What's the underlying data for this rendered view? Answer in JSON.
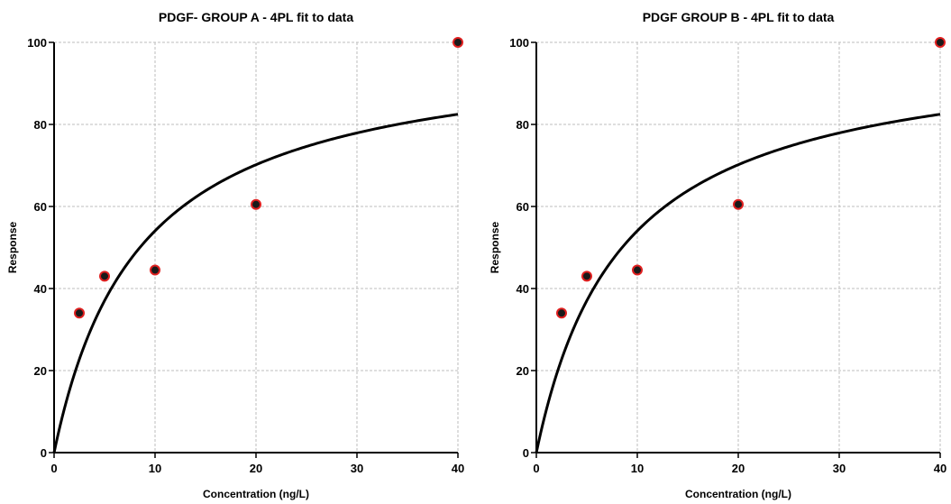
{
  "chart_data": [
    {
      "type": "scatter",
      "title": "PDGF- GROUP A - 4PL fit to data",
      "xlabel": "Concentration (ng/L)",
      "ylabel": "Response",
      "xlim": [
        0,
        40
      ],
      "ylim": [
        0,
        100
      ],
      "xticks": [
        0,
        10,
        20,
        30,
        40
      ],
      "yticks": [
        0,
        20,
        40,
        60,
        80,
        100
      ],
      "grid": true,
      "series": [
        {
          "x": [
            2.5,
            5,
            10,
            20,
            40
          ],
          "y": [
            34,
            43,
            44.5,
            60.5,
            100
          ]
        }
      ],
      "fit": {
        "model": "4PL",
        "params": {
          "a": 0,
          "d": 100,
          "c": 8.5,
          "b": 1
        }
      }
    },
    {
      "type": "scatter",
      "title": "PDGF GROUP B - 4PL fit to data",
      "xlabel": "Concentration (ng/L)",
      "ylabel": "Response",
      "xlim": [
        0,
        40
      ],
      "ylim": [
        0,
        100
      ],
      "xticks": [
        0,
        10,
        20,
        30,
        40
      ],
      "yticks": [
        0,
        20,
        40,
        60,
        80,
        100
      ],
      "grid": true,
      "series": [
        {
          "x": [
            2.5,
            5,
            10,
            20,
            40
          ],
          "y": [
            34,
            43,
            44.5,
            60.5,
            100
          ]
        }
      ],
      "fit": {
        "model": "4PL",
        "params": {
          "a": 0,
          "d": 100,
          "c": 8.5,
          "b": 1
        }
      }
    }
  ]
}
